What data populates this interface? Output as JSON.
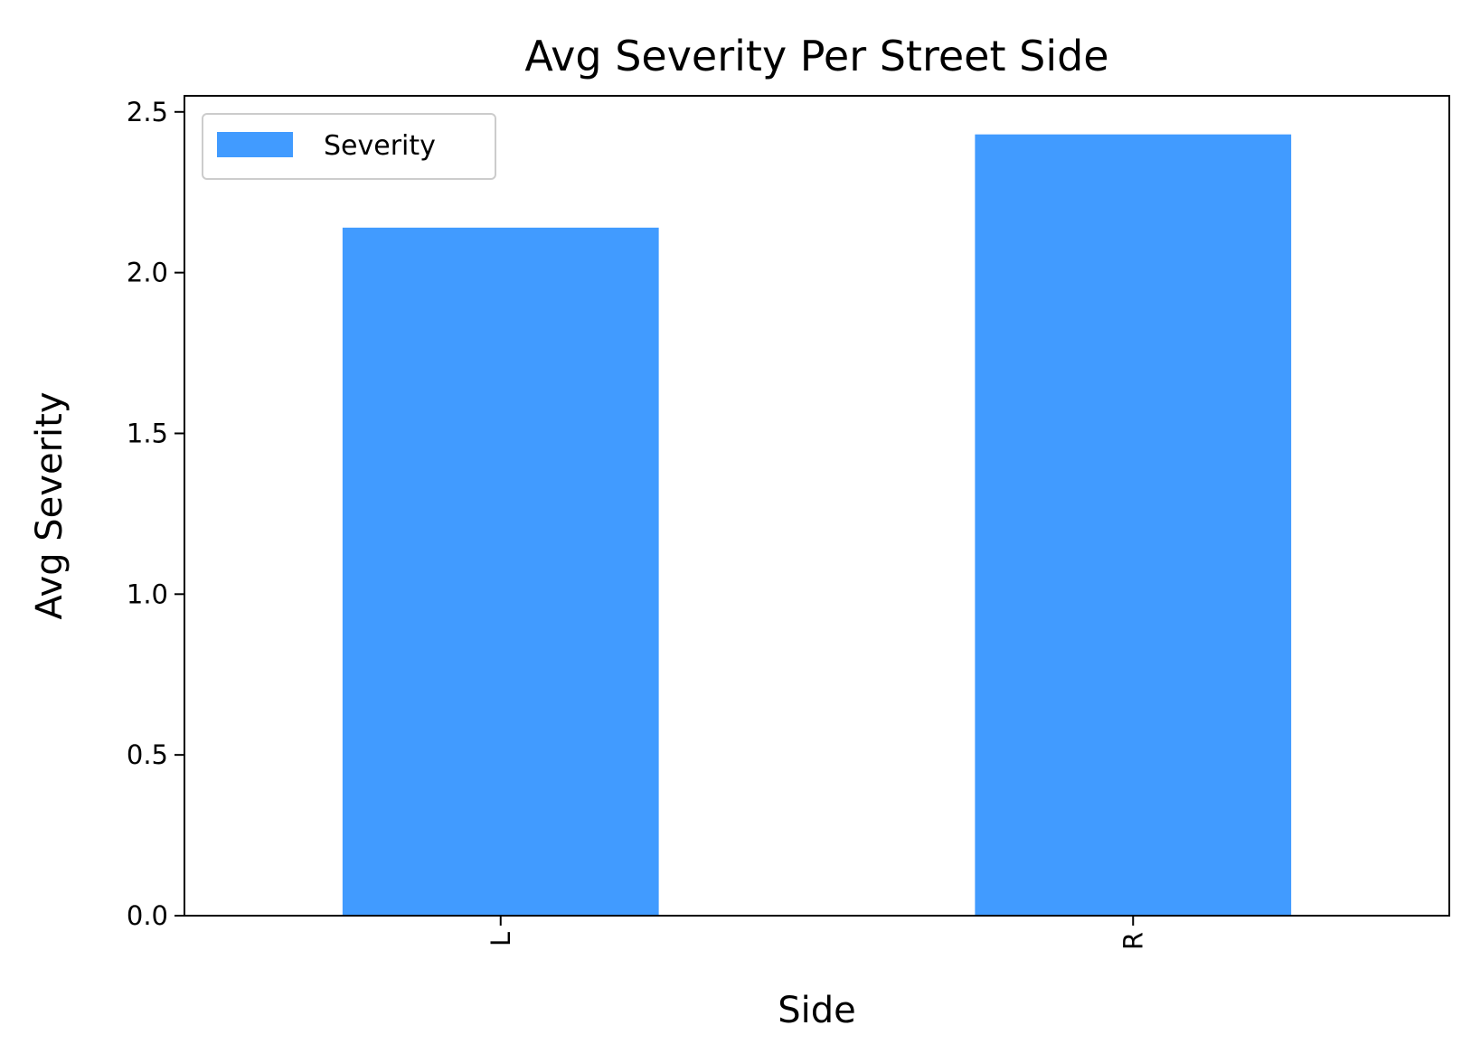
{
  "chart_data": {
    "type": "bar",
    "title": "Avg Severity Per Street Side",
    "xlabel": "Side",
    "ylabel": "Avg Severity",
    "categories": [
      "L",
      "R"
    ],
    "series": [
      {
        "name": "Severity",
        "values": [
          2.14,
          2.43
        ]
      }
    ],
    "ylim": [
      0,
      2.55
    ],
    "yticks": [
      0.0,
      0.5,
      1.0,
      1.5,
      2.0,
      2.5
    ],
    "ytick_labels": [
      "0.0",
      "0.5",
      "1.0",
      "1.5",
      "2.0",
      "2.5"
    ],
    "grid": false,
    "legend_position": "top-left",
    "x_tick_rotation": "vertical",
    "bar_color": "#419bff"
  }
}
